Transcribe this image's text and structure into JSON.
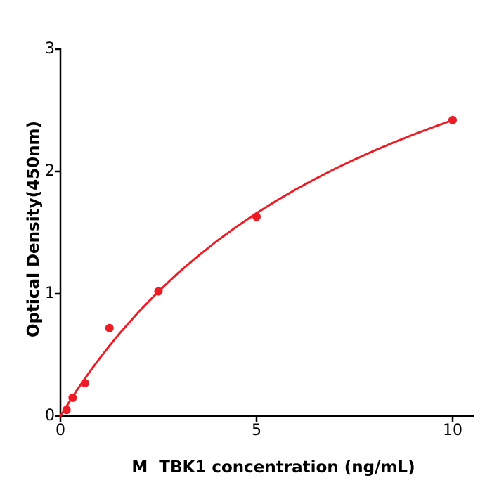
{
  "figure": {
    "background": "#ffffff"
  },
  "chart_data": {
    "type": "scatter",
    "title": "",
    "xlabel": "M  TBK1 concentration (ng/mL)",
    "ylabel": "Optical Density(450nm)",
    "xlim": [
      0,
      10.5
    ],
    "ylim": [
      0,
      3
    ],
    "x_ticks": [
      0,
      5,
      10
    ],
    "y_ticks": [
      0,
      1,
      2,
      3
    ],
    "grid": false,
    "legend": "none",
    "colors": {
      "series": "#ed1c24",
      "axis": "#000000",
      "background": "#ffffff"
    },
    "points": {
      "x": [
        0.156,
        0.3125,
        0.625,
        1.25,
        2.5,
        5,
        10
      ],
      "y": [
        0.05,
        0.15,
        0.27,
        0.72,
        1.02,
        1.63,
        2.42
      ]
    },
    "fit_curve": {
      "x": [
        0,
        0.2,
        0.4,
        0.6,
        0.8,
        1.0,
        1.25,
        1.5,
        2.0,
        2.5,
        3.0,
        3.5,
        4.0,
        4.5,
        5.0,
        5.5,
        6.0,
        6.5,
        7.0,
        7.5,
        8.0,
        8.5,
        9.0,
        9.5,
        10.0
      ],
      "y": [
        0,
        0.103,
        0.202,
        0.296,
        0.386,
        0.472,
        0.575,
        0.673,
        0.854,
        1.019,
        1.17,
        1.307,
        1.434,
        1.551,
        1.659,
        1.76,
        1.853,
        1.94,
        2.022,
        2.098,
        2.17,
        2.238,
        2.302,
        2.362,
        2.42
      ]
    }
  }
}
